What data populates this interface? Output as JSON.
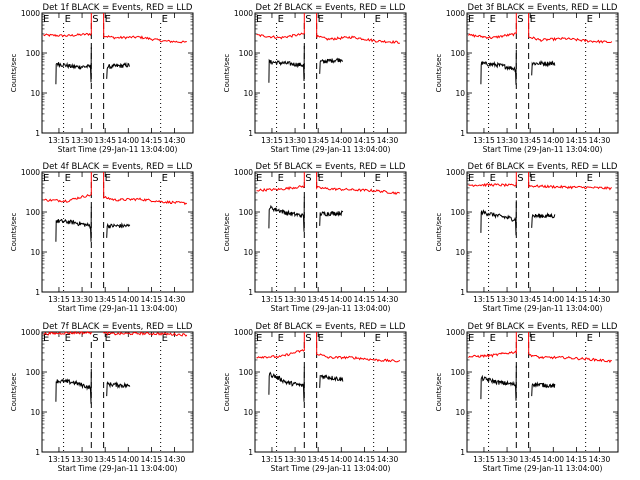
{
  "chart_data": {
    "type": "line",
    "title_template": "Det {n}f BLACK = Events, RED = LLD",
    "xlabel": "Start Time (29-Jan-11 13:04:00)",
    "ylabel": "Counts/sec",
    "y_scale": "log",
    "ylim": [
      1,
      1000
    ],
    "y_ticks": [
      "1",
      "10",
      "100",
      "1000"
    ],
    "x_ticks": [
      "13:15",
      "13:30",
      "13:45",
      "14:00",
      "14:15",
      "14:30"
    ],
    "x_tick_minutes": [
      11,
      26,
      41,
      56,
      71,
      86
    ],
    "xlim_minutes": [
      0,
      98
    ],
    "markers": [
      {
        "label": "E",
        "minute": 0,
        "style": "dotted"
      },
      {
        "label": "E",
        "minute": 14,
        "style": "dotted"
      },
      {
        "label": "S",
        "minute": 32,
        "style": "dashed"
      },
      {
        "label": "E",
        "minute": 40,
        "style": "dashed"
      },
      {
        "label": "E",
        "minute": 77,
        "style": "dotted"
      }
    ],
    "colors": {
      "events": "#000000",
      "lld": "#ff0000"
    },
    "series_names": [
      "Events",
      "LLD"
    ],
    "panels": [
      {
        "n": 1,
        "lld": [
          280,
          270,
          300,
          240,
          250,
          200,
          185
        ],
        "events": [
          55,
          45,
          46,
          45,
          50
        ]
      },
      {
        "n": 2,
        "lld": [
          280,
          240,
          300,
          220,
          250,
          200,
          185
        ],
        "events": [
          60,
          55,
          50,
          60,
          70
        ]
      },
      {
        "n": 3,
        "lld": [
          280,
          240,
          300,
          210,
          230,
          200,
          185
        ],
        "events": [
          55,
          50,
          40,
          55,
          55
        ]
      },
      {
        "n": 4,
        "lld": [
          200,
          190,
          270,
          200,
          210,
          180,
          165
        ],
        "events": [
          60,
          55,
          45,
          45,
          45
        ]
      },
      {
        "n": 5,
        "lld": [
          350,
          370,
          440,
          380,
          360,
          340,
          290
        ],
        "events": [
          130,
          95,
          80,
          90,
          95
        ]
      },
      {
        "n": 6,
        "lld": [
          470,
          480,
          460,
          440,
          420,
          410,
          390
        ],
        "events": [
          100,
          80,
          65,
          80,
          80
        ]
      },
      {
        "n": 7,
        "lld": [
          900,
          950,
          960,
          900,
          920,
          900,
          850
        ],
        "events": [
          60,
          55,
          40,
          50,
          45
        ]
      },
      {
        "n": 8,
        "lld": [
          240,
          240,
          350,
          230,
          230,
          200,
          185
        ],
        "events": [
          90,
          55,
          45,
          80,
          65
        ]
      },
      {
        "n": 9,
        "lld": [
          240,
          260,
          320,
          230,
          230,
          210,
          185
        ],
        "events": [
          70,
          55,
          48,
          50,
          45
        ]
      }
    ]
  }
}
